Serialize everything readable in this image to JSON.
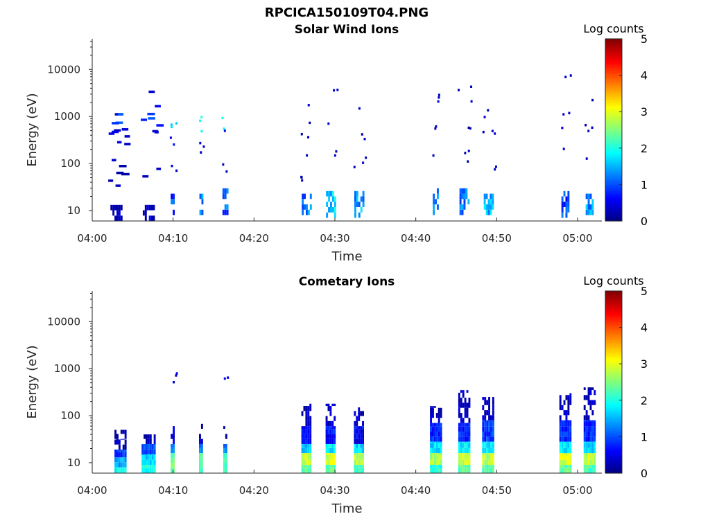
{
  "figure_title": "RPCICA150109T04.PNG",
  "chart_data": [
    {
      "type": "heatmap",
      "title": "Solar Wind Ions",
      "xlabel": "Time",
      "ylabel": "Energy (eV)",
      "y_scale": "log",
      "xlim": [
        "04:00",
        "05:03"
      ],
      "ylim": [
        6,
        45000
      ],
      "x_ticks": [
        "04:00",
        "04:10",
        "04:20",
        "04:30",
        "04:40",
        "04:50",
        "05:00"
      ],
      "y_ticks": [
        10,
        100,
        1000,
        10000
      ],
      "y_tick_labels": [
        "10",
        "100",
        "1000",
        "10000"
      ],
      "colorbar": {
        "label": "Log counts",
        "range": [
          0,
          5
        ],
        "ticks": [
          "0",
          "1",
          "2",
          "3",
          "4",
          "5"
        ],
        "colormap": "jet"
      },
      "bursts": [
        {
          "t": "04:03",
          "width_min": 1.5,
          "low_band": [
            6,
            13
          ],
          "low_level": 0.2,
          "sparse": [
            [
              1600,
              0.3
            ],
            [
              800,
              1.0
            ],
            [
              600,
              0.6
            ],
            [
              450,
              0.3
            ],
            [
              300,
              0.2
            ],
            [
              80,
              0.2
            ],
            [
              50,
              0.2
            ]
          ]
        },
        {
          "t": "04:07",
          "width_min": 1.5,
          "low_band": [
            6,
            13
          ],
          "low_level": 0.4,
          "sparse": [
            [
              2500,
              0.3
            ],
            [
              1500,
              0.3
            ],
            [
              800,
              0.8
            ],
            [
              600,
              0.6
            ],
            [
              400,
              0.3
            ],
            [
              70,
              0.2
            ]
          ]
        },
        {
          "t": "04:10",
          "width_min": 0.6,
          "low_band": [
            8,
            22
          ],
          "low_level": 0.9,
          "sparse": [
            [
              700,
              1.6
            ],
            [
              300,
              0.4
            ],
            [
              100,
              0.2
            ]
          ]
        },
        {
          "t": "04:13.5",
          "width_min": 0.5,
          "low_band": [
            8,
            22
          ],
          "low_level": 1.3,
          "sparse": [
            [
              700,
              1.8
            ],
            [
              200,
              0.3
            ]
          ]
        },
        {
          "t": "04:16.5",
          "width_min": 0.8,
          "low_band": [
            8,
            25
          ],
          "low_level": 1.1,
          "sparse": [
            [
              700,
              1.9
            ],
            [
              350,
              0.3
            ],
            [
              100,
              0.2
            ]
          ]
        },
        {
          "t": "04:26.5",
          "width_min": 1.2,
          "low_band": [
            8,
            22
          ],
          "low_level": 1.2,
          "sparse": [
            [
              2000,
              0.3
            ],
            [
              500,
              0.2
            ],
            [
              150,
              0.2
            ],
            [
              60,
              0.2
            ]
          ]
        },
        {
          "t": "04:29.5",
          "width_min": 1.2,
          "low_band": [
            7,
            22
          ],
          "low_level": 1.6,
          "sparse": [
            [
              3000,
              0.2
            ],
            [
              800,
              0.2
            ],
            [
              200,
              0.2
            ]
          ]
        },
        {
          "t": "04:33",
          "width_min": 1.2,
          "low_band": [
            7,
            25
          ],
          "low_level": 1.4,
          "sparse": [
            [
              1000,
              0.2
            ],
            [
              300,
              0.2
            ],
            [
              100,
              0.2
            ]
          ]
        },
        {
          "t": "04:42.5",
          "width_min": 0.8,
          "low_band": [
            8,
            25
          ],
          "low_level": 1.3,
          "sparse": [
            [
              2000,
              0.2
            ],
            [
              700,
              0.2
            ],
            [
              200,
              0.2
            ]
          ]
        },
        {
          "t": "04:46",
          "width_min": 1.2,
          "low_band": [
            8,
            25
          ],
          "low_level": 1.3,
          "sparse": [
            [
              3000,
              0.2
            ],
            [
              800,
              0.2
            ],
            [
              150,
              0.2
            ]
          ]
        },
        {
          "t": "04:49",
          "width_min": 1.2,
          "low_band": [
            8,
            22
          ],
          "low_level": 1.5,
          "sparse": [
            [
              1000,
              0.2
            ],
            [
              400,
              0.2
            ],
            [
              100,
              0.2
            ]
          ]
        },
        {
          "t": "04:58.5",
          "width_min": 1.0,
          "low_band": [
            7,
            22
          ],
          "low_level": 1.0,
          "sparse": [
            [
              5000,
              0.2
            ],
            [
              800,
              0.2
            ],
            [
              250,
              0.2
            ]
          ]
        },
        {
          "t": "05:01.5",
          "width_min": 1.0,
          "low_band": [
            8,
            22
          ],
          "low_level": 1.3,
          "sparse": [
            [
              2000,
              0.2
            ],
            [
              500,
              0.2
            ],
            [
              150,
              0.2
            ]
          ]
        }
      ]
    },
    {
      "type": "heatmap",
      "title": "Cometary Ions",
      "xlabel": "Time",
      "ylabel": "Energy (eV)",
      "y_scale": "log",
      "xlim": [
        "04:00",
        "05:03"
      ],
      "ylim": [
        6,
        45000
      ],
      "x_ticks": [
        "04:00",
        "04:10",
        "04:20",
        "04:30",
        "04:40",
        "04:50",
        "05:00"
      ],
      "y_ticks": [
        10,
        100,
        1000,
        10000
      ],
      "y_tick_labels": [
        "10",
        "100",
        "1000",
        "10000"
      ],
      "colorbar": {
        "label": "Log counts",
        "range": [
          0,
          5
        ],
        "ticks": [
          "0",
          "1",
          "2",
          "3",
          "4",
          "5"
        ],
        "colormap": "jet"
      },
      "bursts": [
        {
          "t": "04:03.5",
          "width_min": 1.5,
          "bands": [
            [
              6,
              8,
              1.9
            ],
            [
              8,
              13,
              1.5
            ],
            [
              13,
              19,
              0.9
            ],
            [
              19,
              32,
              0.3
            ],
            [
              32,
              50,
              0.2
            ]
          ]
        },
        {
          "t": "04:07",
          "width_min": 1.8,
          "bands": [
            [
              6,
              9,
              2.0
            ],
            [
              9,
              15,
              1.7
            ],
            [
              15,
              25,
              1.0
            ],
            [
              25,
              40,
              0.3
            ]
          ]
        },
        {
          "t": "04:10",
          "width_min": 0.6,
          "bands": [
            [
              6,
              16,
              2.4
            ],
            [
              16,
              25,
              1.2
            ],
            [
              25,
              60,
              0.4
            ]
          ],
          "sparse": [
            [
              700,
              0.3
            ]
          ]
        },
        {
          "t": "04:13.5",
          "width_min": 0.6,
          "bands": [
            [
              6,
              16,
              2.3
            ],
            [
              16,
              25,
              1.2
            ],
            [
              25,
              70,
              0.3
            ]
          ]
        },
        {
          "t": "04:16.5",
          "width_min": 0.6,
          "bands": [
            [
              6,
              16,
              2.3
            ],
            [
              16,
              25,
              1.2
            ],
            [
              25,
              60,
              0.3
            ]
          ],
          "sparse": [
            [
              700,
              0.3
            ]
          ]
        },
        {
          "t": "04:26.5",
          "width_min": 1.3,
          "bands": [
            [
              6,
              9,
              2.3
            ],
            [
              9,
              16,
              2.8
            ],
            [
              16,
              25,
              1.6
            ],
            [
              25,
              60,
              0.6
            ],
            [
              60,
              180,
              0.3
            ]
          ]
        },
        {
          "t": "04:29.5",
          "width_min": 1.3,
          "bands": [
            [
              6,
              9,
              2.3
            ],
            [
              9,
              16,
              2.9
            ],
            [
              16,
              25,
              1.8
            ],
            [
              25,
              60,
              0.7
            ],
            [
              60,
              180,
              0.3
            ]
          ]
        },
        {
          "t": "04:33",
          "width_min": 1.3,
          "bands": [
            [
              6,
              9,
              2.2
            ],
            [
              9,
              16,
              2.8
            ],
            [
              16,
              25,
              1.7
            ],
            [
              25,
              60,
              0.6
            ],
            [
              60,
              150,
              0.3
            ]
          ]
        },
        {
          "t": "04:42.5",
          "width_min": 1.5,
          "bands": [
            [
              6,
              9,
              2.0
            ],
            [
              9,
              16,
              2.7
            ],
            [
              16,
              28,
              1.7
            ],
            [
              28,
              70,
              0.8
            ],
            [
              70,
              160,
              0.3
            ]
          ]
        },
        {
          "t": "04:46",
          "width_min": 1.5,
          "bands": [
            [
              6,
              9,
              2.3
            ],
            [
              9,
              16,
              2.9
            ],
            [
              16,
              28,
              1.8
            ],
            [
              28,
              70,
              0.8
            ],
            [
              70,
              350,
              0.3
            ]
          ]
        },
        {
          "t": "04:49",
          "width_min": 1.6,
          "bands": [
            [
              6,
              9,
              2.3
            ],
            [
              9,
              16,
              2.8
            ],
            [
              16,
              28,
              1.8
            ],
            [
              28,
              80,
              0.9
            ],
            [
              80,
              250,
              0.3
            ]
          ]
        },
        {
          "t": "04:58.5",
          "width_min": 1.5,
          "bands": [
            [
              6,
              9,
              2.3
            ],
            [
              9,
              16,
              2.9
            ],
            [
              16,
              28,
              1.8
            ],
            [
              28,
              80,
              0.8
            ],
            [
              80,
              300,
              0.3
            ]
          ]
        },
        {
          "t": "05:01.5",
          "width_min": 1.5,
          "bands": [
            [
              6,
              9,
              2.2
            ],
            [
              9,
              16,
              2.8
            ],
            [
              16,
              28,
              1.7
            ],
            [
              28,
              80,
              0.8
            ],
            [
              80,
              400,
              0.3
            ]
          ]
        }
      ]
    }
  ]
}
